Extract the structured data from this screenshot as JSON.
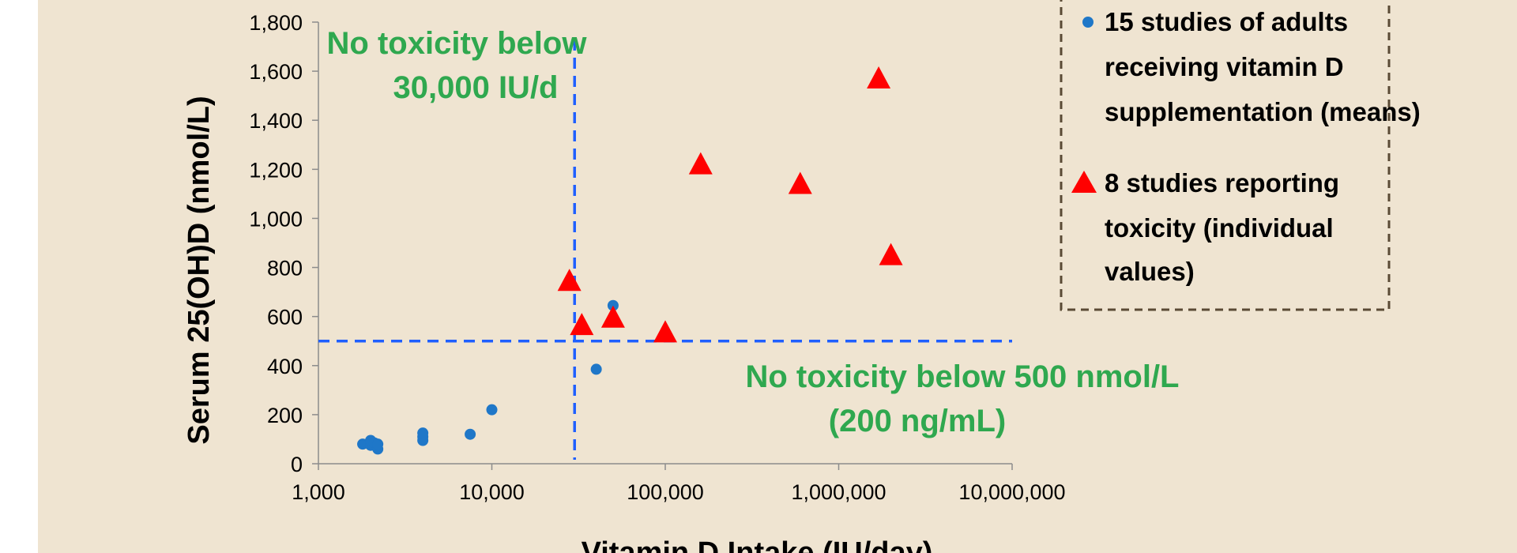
{
  "colors": {
    "background": "#efe4d1",
    "circle_series": "#1f77c8",
    "triangle_series": "#ff0000",
    "threshold_lines": "#1f5fff",
    "annotation_text": "#2fa84f",
    "legend_border": "#5a4a35"
  },
  "chart_data": {
    "type": "scatter",
    "xlabel": "Vitamin D Intake (IU/day)",
    "ylabel": "Serum 25(OH)D (nmol/L)",
    "x_scale": "log",
    "xlim": [
      1000,
      10000000
    ],
    "ylim": [
      0,
      1800
    ],
    "x_ticks": [
      "1,000",
      "10,000",
      "100,000",
      "1,000,000",
      "10,000,000"
    ],
    "x_tick_values": [
      1000,
      10000,
      100000,
      1000000,
      10000000
    ],
    "y_ticks": [
      "0",
      "200",
      "400",
      "600",
      "800",
      "1,000",
      "1,200",
      "1,400",
      "1,600",
      "1,800"
    ],
    "y_tick_values": [
      0,
      200,
      400,
      600,
      800,
      1000,
      1200,
      1400,
      1600,
      1800
    ],
    "grid": false,
    "legend_position": "top-right",
    "series": [
      {
        "name": "15 studies of adults receiving vitamin D supplementation (means)",
        "marker": "circle",
        "points": [
          {
            "x": 1800,
            "y": 80
          },
          {
            "x": 2000,
            "y": 75
          },
          {
            "x": 2000,
            "y": 95
          },
          {
            "x": 2100,
            "y": 85
          },
          {
            "x": 2200,
            "y": 60
          },
          {
            "x": 2200,
            "y": 80
          },
          {
            "x": 4000,
            "y": 95
          },
          {
            "x": 4000,
            "y": 110
          },
          {
            "x": 4000,
            "y": 125
          },
          {
            "x": 7500,
            "y": 120
          },
          {
            "x": 10000,
            "y": 220
          },
          {
            "x": 40000,
            "y": 385
          },
          {
            "x": 50000,
            "y": 645
          }
        ]
      },
      {
        "name": "8 studies reporting toxicity (individual values)",
        "marker": "triangle",
        "points": [
          {
            "x": 28000,
            "y": 740
          },
          {
            "x": 33000,
            "y": 560
          },
          {
            "x": 50000,
            "y": 590
          },
          {
            "x": 100000,
            "y": 530
          },
          {
            "x": 160000,
            "y": 1215
          },
          {
            "x": 600000,
            "y": 1135
          },
          {
            "x": 1700000,
            "y": 1565
          },
          {
            "x": 2000000,
            "y": 845
          }
        ]
      }
    ],
    "thresholds": {
      "x_value": 30000,
      "y_value": 500
    },
    "annotations": {
      "vertical_line_label": [
        "No toxicity below",
        "30,000 IU/d"
      ],
      "horizontal_line_label": [
        "No toxicity below 500 nmol/L",
        "(200 ng/mL)"
      ]
    },
    "legend": {
      "circle_label_lines": [
        "15 studies of adults",
        "receiving vitamin D",
        "supplementation (means)"
      ],
      "triangle_label_lines": [
        "8 studies reporting",
        "toxicity (individual",
        "values)"
      ]
    }
  }
}
